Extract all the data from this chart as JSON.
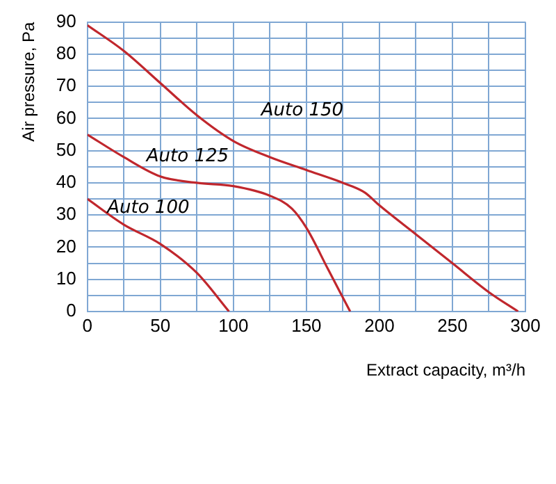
{
  "chart_data": {
    "type": "line",
    "xlabel": "Extract capacity, m³/h",
    "ylabel": "Air pressure, Pa",
    "xlim": [
      0,
      300
    ],
    "xticks": [
      0,
      {
        "value": 25,
        "label": null
      },
      50,
      {
        "value": 75,
        "label": null
      },
      100,
      {
        "value": 125,
        "label": null
      },
      150,
      {
        "value": 175,
        "label": null
      },
      200,
      {
        "value": 225,
        "label": null
      },
      250,
      {
        "value": 275,
        "label": null
      },
      300
    ],
    "ylim": [
      0,
      90
    ],
    "yticks": [
      0,
      {
        "value": 5,
        "label": null
      },
      10,
      {
        "value": 15,
        "label": null
      },
      20,
      {
        "value": 25,
        "label": null
      },
      30,
      {
        "value": 35,
        "label": null
      },
      40,
      {
        "value": 45,
        "label": null
      },
      50,
      {
        "value": 55,
        "label": null
      },
      60,
      {
        "value": 65,
        "label": null
      },
      70,
      {
        "value": 75,
        "label": null
      },
      80,
      {
        "value": 85,
        "label": null
      },
      90
    ],
    "grid": true,
    "legend": false,
    "marker": "none",
    "line_style": "solid",
    "series": [
      {
        "name": "Auto 150",
        "color": "#c0272d",
        "x": [
          0,
          25,
          50,
          75,
          100,
          125,
          150,
          175,
          190,
          200,
          225,
          250,
          275,
          295
        ],
        "values": [
          89,
          81,
          71,
          61,
          53,
          48,
          44,
          40,
          37,
          33,
          24,
          15,
          6,
          0
        ]
      },
      {
        "name": "Auto 125",
        "color": "#c0272d",
        "x": [
          0,
          25,
          50,
          75,
          100,
          125,
          140,
          150,
          165,
          180
        ],
        "values": [
          55,
          48,
          42,
          40,
          39,
          36,
          32,
          26,
          13,
          0
        ]
      },
      {
        "name": "Auto 100",
        "color": "#c0272d",
        "x": [
          0,
          25,
          50,
          75,
          97
        ],
        "values": [
          35,
          27,
          21,
          12,
          0
        ]
      }
    ]
  }
}
